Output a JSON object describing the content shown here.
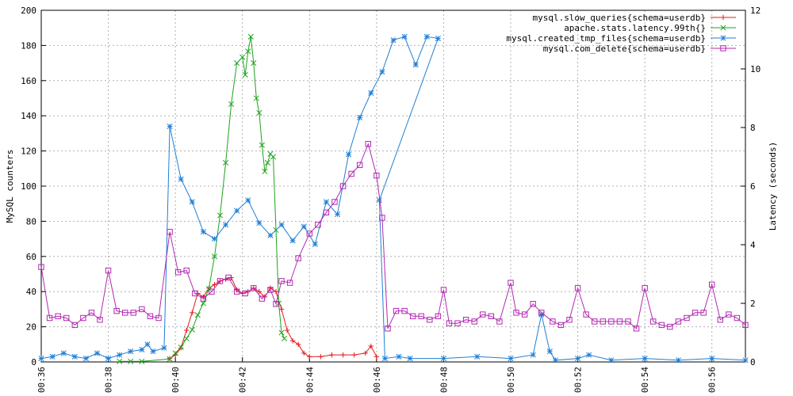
{
  "chart_data": {
    "type": "line",
    "title": "",
    "grid": true,
    "legend_position": "top-right",
    "x_ticks": [
      "00:36",
      "00:38",
      "00:40",
      "00:42",
      "00:44",
      "00:46",
      "00:48",
      "00:50",
      "00:52",
      "00:54",
      "00:56"
    ],
    "x_range": [
      "00:36",
      "00:57"
    ],
    "y_left": {
      "label": "MySQL counters",
      "range": [
        0,
        200
      ],
      "ticks": [
        "0",
        "20",
        "40",
        "60",
        "80",
        "100",
        "120",
        "140",
        "160",
        "180",
        "200"
      ]
    },
    "y_right": {
      "label": "Latency (seconds)",
      "range": [
        0,
        12
      ],
      "ticks": [
        "0",
        "2",
        "4",
        "6",
        "8",
        "10",
        "12"
      ]
    },
    "series": [
      {
        "name": "mysql.slow_queries{schema=userdb}",
        "color": "#e41a1c",
        "marker": "plus",
        "axis": "left",
        "points": [
          [
            "00:39:50",
            2
          ],
          [
            "00:40:00",
            4
          ],
          [
            "00:40:10",
            8
          ],
          [
            "00:40:20",
            18
          ],
          [
            "00:40:30",
            28
          ],
          [
            "00:40:40",
            39
          ],
          [
            "00:40:50",
            37
          ],
          [
            "00:41:00",
            42
          ],
          [
            "00:41:10",
            44
          ],
          [
            "00:41:20",
            46
          ],
          [
            "00:41:30",
            47
          ],
          [
            "00:41:40",
            48
          ],
          [
            "00:41:50",
            41
          ],
          [
            "00:42:00",
            39
          ],
          [
            "00:42:10",
            40
          ],
          [
            "00:42:20",
            42
          ],
          [
            "00:42:30",
            40
          ],
          [
            "00:42:40",
            37
          ],
          [
            "00:42:50",
            42
          ],
          [
            "00:43:00",
            40
          ],
          [
            "00:43:10",
            30
          ],
          [
            "00:43:20",
            18
          ],
          [
            "00:43:30",
            12
          ],
          [
            "00:43:40",
            10
          ],
          [
            "00:43:50",
            5
          ],
          [
            "00:44:00",
            3
          ],
          [
            "00:44:20",
            3
          ],
          [
            "00:44:40",
            4
          ],
          [
            "00:45:00",
            4
          ],
          [
            "00:45:20",
            4
          ],
          [
            "00:45:40",
            5
          ],
          [
            "00:45:50",
            9
          ],
          [
            "00:46:00",
            3
          ]
        ]
      },
      {
        "name": "apache.stats.latency.99th{}",
        "color": "#1ca31c",
        "marker": "cross",
        "axis": "right",
        "points": [
          [
            "00:38:20",
            0.02
          ],
          [
            "00:38:40",
            0.02
          ],
          [
            "00:39:00",
            0.02
          ],
          [
            "00:39:50",
            0.1
          ],
          [
            "00:40:00",
            0.3
          ],
          [
            "00:40:10",
            0.5
          ],
          [
            "00:40:20",
            0.8
          ],
          [
            "00:40:30",
            1.1
          ],
          [
            "00:40:40",
            1.6
          ],
          [
            "00:40:50",
            2.0
          ],
          [
            "00:41:00",
            2.5
          ],
          [
            "00:41:10",
            3.6
          ],
          [
            "00:41:20",
            5.0
          ],
          [
            "00:41:30",
            6.8
          ],
          [
            "00:41:40",
            8.8
          ],
          [
            "00:41:50",
            10.2
          ],
          [
            "00:42:00",
            10.4
          ],
          [
            "00:42:05",
            9.8
          ],
          [
            "00:42:10",
            10.6
          ],
          [
            "00:42:15",
            11.1
          ],
          [
            "00:42:20",
            10.2
          ],
          [
            "00:42:25",
            9.0
          ],
          [
            "00:42:30",
            8.5
          ],
          [
            "00:42:35",
            7.4
          ],
          [
            "00:42:40",
            6.5
          ],
          [
            "00:42:45",
            6.8
          ],
          [
            "00:42:50",
            7.1
          ],
          [
            "00:42:55",
            7.0
          ],
          [
            "00:43:00",
            4.5
          ],
          [
            "00:43:05",
            2.0
          ],
          [
            "00:43:10",
            1.0
          ],
          [
            "00:43:15",
            0.8
          ]
        ]
      },
      {
        "name": "mysql.created_tmp_files{schema=userdb}",
        "color": "#1f7fd6",
        "marker": "star",
        "axis": "left",
        "points": [
          [
            "00:36:00",
            2
          ],
          [
            "00:36:20",
            3
          ],
          [
            "00:36:40",
            5
          ],
          [
            "00:37:00",
            3
          ],
          [
            "00:37:20",
            2
          ],
          [
            "00:37:40",
            5
          ],
          [
            "00:38:00",
            2
          ],
          [
            "00:38:20",
            4
          ],
          [
            "00:38:40",
            6
          ],
          [
            "00:39:00",
            7
          ],
          [
            "00:39:10",
            10
          ],
          [
            "00:39:20",
            6
          ],
          [
            "00:39:40",
            8
          ],
          [
            "00:39:50",
            134
          ],
          [
            "00:40:10",
            104
          ],
          [
            "00:40:30",
            91
          ],
          [
            "00:40:50",
            74
          ],
          [
            "00:41:10",
            70
          ],
          [
            "00:41:30",
            78
          ],
          [
            "00:41:50",
            86
          ],
          [
            "00:42:10",
            92
          ],
          [
            "00:42:30",
            79
          ],
          [
            "00:42:50",
            72
          ],
          [
            "00:43:10",
            78
          ],
          [
            "00:43:30",
            69
          ],
          [
            "00:43:50",
            77
          ],
          [
            "00:44:10",
            67
          ],
          [
            "00:44:30",
            91
          ],
          [
            "00:44:50",
            84
          ],
          [
            "00:45:10",
            118
          ],
          [
            "00:45:30",
            139
          ],
          [
            "00:45:50",
            153
          ],
          [
            "00:46:10",
            165
          ],
          [
            "00:46:30",
            183
          ],
          [
            "00:46:50",
            185
          ],
          [
            "00:47:10",
            169
          ],
          [
            "00:47:30",
            185
          ],
          [
            "00:47:50",
            184
          ],
          [
            "00:46:05",
            92
          ],
          [
            "00:46:15",
            2
          ],
          [
            "00:46:40",
            3
          ],
          [
            "00:47:00",
            2
          ],
          [
            "00:48:00",
            2
          ],
          [
            "00:49:00",
            3
          ],
          [
            "00:50:00",
            2
          ],
          [
            "00:50:40",
            4
          ],
          [
            "00:50:55",
            27
          ],
          [
            "00:51:10",
            6
          ],
          [
            "00:51:20",
            1
          ],
          [
            "00:52:00",
            2
          ],
          [
            "00:52:20",
            4
          ],
          [
            "00:53:00",
            1
          ],
          [
            "00:54:00",
            2
          ],
          [
            "00:55:00",
            1
          ],
          [
            "00:56:00",
            2
          ],
          [
            "00:57:00",
            1
          ]
        ]
      },
      {
        "name": "mysql.com_delete{schema=userdb}",
        "color": "#b228b2",
        "marker": "square",
        "axis": "left",
        "points": [
          [
            "00:36:00",
            54
          ],
          [
            "00:36:15",
            25
          ],
          [
            "00:36:30",
            26
          ],
          [
            "00:36:45",
            25
          ],
          [
            "00:37:00",
            21
          ],
          [
            "00:37:15",
            25
          ],
          [
            "00:37:30",
            28
          ],
          [
            "00:37:45",
            24
          ],
          [
            "00:38:00",
            52
          ],
          [
            "00:38:15",
            29
          ],
          [
            "00:38:30",
            28
          ],
          [
            "00:38:45",
            28
          ],
          [
            "00:39:00",
            30
          ],
          [
            "00:39:15",
            26
          ],
          [
            "00:39:30",
            25
          ],
          [
            "00:39:50",
            74
          ],
          [
            "00:40:05",
            51
          ],
          [
            "00:40:20",
            52
          ],
          [
            "00:40:35",
            39
          ],
          [
            "00:40:50",
            36
          ],
          [
            "00:41:05",
            40
          ],
          [
            "00:41:20",
            46
          ],
          [
            "00:41:35",
            48
          ],
          [
            "00:41:50",
            40
          ],
          [
            "00:42:05",
            39
          ],
          [
            "00:42:20",
            42
          ],
          [
            "00:42:35",
            36
          ],
          [
            "00:42:50",
            41
          ],
          [
            "00:43:00",
            33
          ],
          [
            "00:43:10",
            46
          ],
          [
            "00:43:25",
            45
          ],
          [
            "00:43:40",
            59
          ],
          [
            "00:44:00",
            73
          ],
          [
            "00:44:15",
            78
          ],
          [
            "00:44:30",
            85
          ],
          [
            "00:44:45",
            91
          ],
          [
            "00:45:00",
            100
          ],
          [
            "00:45:15",
            107
          ],
          [
            "00:45:30",
            112
          ],
          [
            "00:45:45",
            124
          ],
          [
            "00:46:00",
            106
          ],
          [
            "00:46:10",
            82
          ],
          [
            "00:46:20",
            19
          ],
          [
            "00:46:35",
            29
          ],
          [
            "00:46:50",
            29
          ],
          [
            "00:47:05",
            26
          ],
          [
            "00:47:20",
            26
          ],
          [
            "00:47:35",
            24
          ],
          [
            "00:47:50",
            26
          ],
          [
            "00:48:00",
            41
          ],
          [
            "00:48:10",
            22
          ],
          [
            "00:48:25",
            22
          ],
          [
            "00:48:40",
            24
          ],
          [
            "00:48:55",
            23
          ],
          [
            "00:49:10",
            27
          ],
          [
            "00:49:25",
            26
          ],
          [
            "00:49:40",
            23
          ],
          [
            "00:50:00",
            45
          ],
          [
            "00:50:10",
            28
          ],
          [
            "00:50:25",
            27
          ],
          [
            "00:50:40",
            33
          ],
          [
            "00:50:55",
            28
          ],
          [
            "00:51:15",
            23
          ],
          [
            "00:51:30",
            21
          ],
          [
            "00:51:45",
            24
          ],
          [
            "00:52:00",
            42
          ],
          [
            "00:52:15",
            27
          ],
          [
            "00:52:30",
            23
          ],
          [
            "00:52:45",
            23
          ],
          [
            "00:53:00",
            23
          ],
          [
            "00:53:15",
            23
          ],
          [
            "00:53:30",
            23
          ],
          [
            "00:53:45",
            19
          ],
          [
            "00:54:00",
            42
          ],
          [
            "00:54:15",
            23
          ],
          [
            "00:54:30",
            21
          ],
          [
            "00:54:45",
            20
          ],
          [
            "00:55:00",
            23
          ],
          [
            "00:55:15",
            25
          ],
          [
            "00:55:30",
            28
          ],
          [
            "00:55:45",
            28
          ],
          [
            "00:56:00",
            44
          ],
          [
            "00:56:15",
            24
          ],
          [
            "00:56:30",
            27
          ],
          [
            "00:56:45",
            25
          ],
          [
            "00:57:00",
            21
          ]
        ]
      }
    ]
  }
}
